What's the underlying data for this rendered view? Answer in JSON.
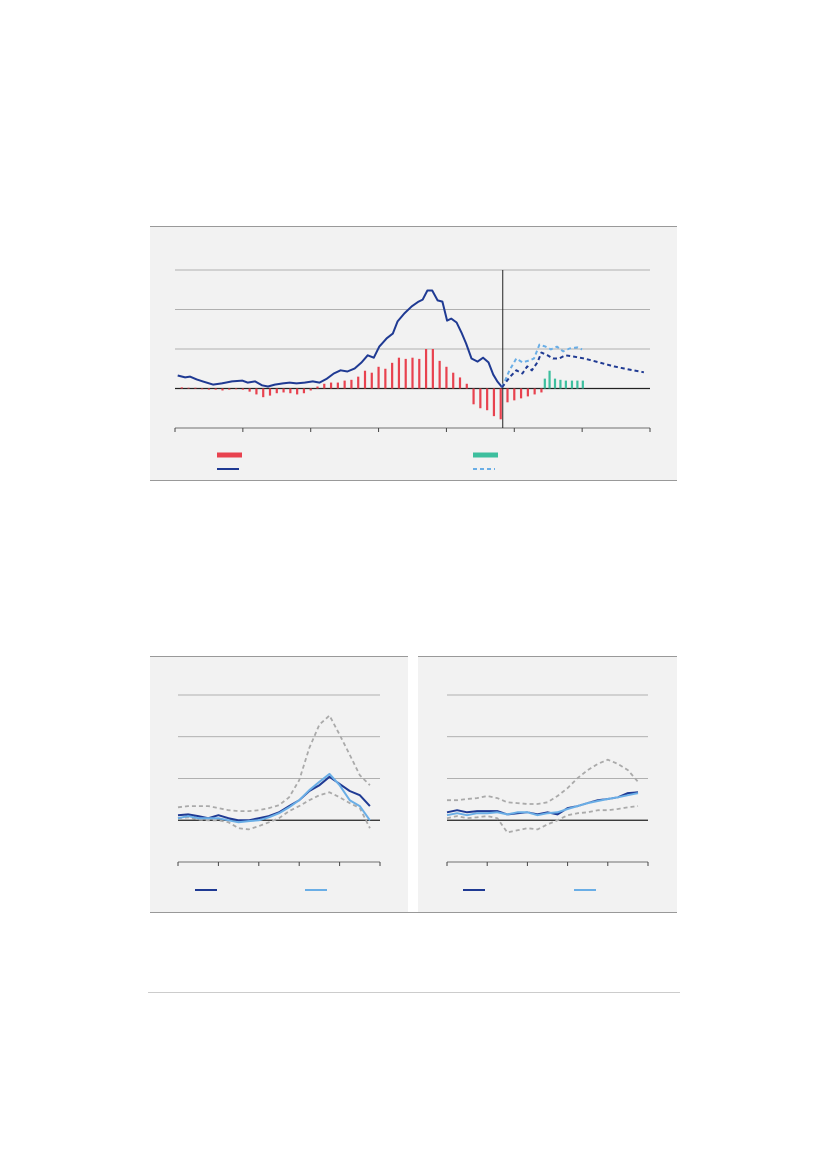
{
  "chart_data": [
    {
      "type": "combo",
      "xlim": [
        0,
        7
      ],
      "xticks": [
        0,
        1,
        2,
        3,
        4,
        5,
        6,
        7
      ],
      "ylim": [
        -1,
        3
      ],
      "yticks": [
        -1,
        0,
        1,
        2,
        3
      ],
      "grid": true,
      "divider_x": 4.83,
      "series": [
        {
          "type": "bar",
          "color": "#e8424f",
          "x": [
            0.1,
            0.2,
            0.3,
            0.4,
            0.5,
            0.6,
            0.7,
            0.8,
            0.9,
            1.0,
            1.1,
            1.2,
            1.3,
            1.4,
            1.5,
            1.6,
            1.7,
            1.8,
            1.9,
            2.0,
            2.1,
            2.2,
            2.3,
            2.4,
            2.5,
            2.6,
            2.7,
            2.8,
            2.9,
            3.0,
            3.1,
            3.2,
            3.3,
            3.4,
            3.5,
            3.6,
            3.7,
            3.8,
            3.9,
            4.0,
            4.1,
            4.2,
            4.3,
            4.4,
            4.5,
            4.6,
            4.7,
            4.8,
            4.9,
            5.0,
            5.1,
            5.2,
            5.3,
            5.4
          ],
          "values": [
            0.03,
            0.02,
            0.02,
            -0.02,
            -0.03,
            -0.03,
            -0.05,
            -0.03,
            -0.02,
            -0.03,
            -0.08,
            -0.15,
            -0.22,
            -0.18,
            -0.12,
            -0.1,
            -0.12,
            -0.15,
            -0.12,
            -0.05,
            0.05,
            0.12,
            0.15,
            0.15,
            0.2,
            0.22,
            0.3,
            0.45,
            0.4,
            0.55,
            0.5,
            0.65,
            0.78,
            0.75,
            0.78,
            0.75,
            1.0,
            1.0,
            0.7,
            0.55,
            0.4,
            0.28,
            0.12,
            -0.4,
            -0.5,
            -0.55,
            -0.7,
            -0.78,
            -0.35,
            -0.3,
            -0.25,
            -0.2,
            -0.15,
            -0.1
          ]
        },
        {
          "type": "line",
          "color": "#1f3a93",
          "x": [
            0.04,
            0.15,
            0.22,
            0.32,
            0.41,
            0.56,
            0.69,
            0.84,
            0.99,
            1.07,
            1.18,
            1.28,
            1.37,
            1.47,
            1.59,
            1.69,
            1.79,
            1.91,
            2.03,
            2.13,
            2.24,
            2.34,
            2.44,
            2.54,
            2.65,
            2.75,
            2.84,
            2.93,
            3.01,
            3.12,
            3.21,
            3.28,
            3.38,
            3.49,
            3.59,
            3.65,
            3.72,
            3.79,
            3.87,
            3.94,
            4.01,
            4.07,
            4.15,
            4.22,
            4.29,
            4.37,
            4.46,
            4.54,
            4.62,
            4.69,
            4.75,
            4.82
          ],
          "values": [
            0.33,
            0.28,
            0.3,
            0.23,
            0.18,
            0.1,
            0.13,
            0.18,
            0.2,
            0.15,
            0.18,
            0.08,
            0.05,
            0.1,
            0.13,
            0.15,
            0.13,
            0.15,
            0.18,
            0.15,
            0.25,
            0.38,
            0.46,
            0.43,
            0.51,
            0.66,
            0.84,
            0.78,
            1.06,
            1.27,
            1.39,
            1.7,
            1.9,
            2.08,
            2.2,
            2.25,
            2.48,
            2.48,
            2.23,
            2.2,
            1.72,
            1.77,
            1.67,
            1.42,
            1.14,
            0.76,
            0.68,
            0.78,
            0.66,
            0.35,
            0.18,
            0.03
          ]
        },
        {
          "type": "bar",
          "color": "#3dbf9e",
          "x": [
            5.45,
            5.52,
            5.6,
            5.68,
            5.76,
            5.85,
            5.93,
            6.01
          ],
          "values": [
            0.25,
            0.45,
            0.25,
            0.22,
            0.2,
            0.2,
            0.2,
            0.2
          ]
        },
        {
          "type": "line",
          "color": "#6aaee6",
          "dash": true,
          "x": [
            4.82,
            4.93,
            5.03,
            5.12,
            5.22,
            5.29,
            5.37,
            5.46,
            5.54,
            5.63,
            5.72,
            5.81,
            5.93,
            6.0
          ],
          "values": [
            0.03,
            0.46,
            0.76,
            0.66,
            0.71,
            0.76,
            1.11,
            1.06,
            0.99,
            1.06,
            0.94,
            1.01,
            1.04,
            0.99
          ]
        },
        {
          "type": "line",
          "color": "#1f3a93",
          "dash": true,
          "legend": false,
          "x": [
            4.82,
            4.93,
            5.03,
            5.12,
            5.19,
            5.26,
            5.34,
            5.4,
            5.49,
            5.57,
            5.66,
            5.75,
            5.87,
            6.03,
            6.25,
            6.47,
            6.69,
            6.91
          ],
          "values": [
            0.03,
            0.28,
            0.46,
            0.38,
            0.56,
            0.46,
            0.66,
            0.91,
            0.84,
            0.76,
            0.76,
            0.84,
            0.81,
            0.76,
            0.66,
            0.56,
            0.48,
            0.41
          ]
        }
      ]
    },
    {
      "type": "line",
      "xlim": [
        0,
        5
      ],
      "xticks": [
        0,
        1,
        2,
        3,
        4,
        5
      ],
      "ylim": [
        -1,
        3
      ],
      "yticks": [
        -1,
        0,
        1,
        2,
        3
      ],
      "grid": true,
      "x": [
        0,
        0.25,
        0.5,
        0.75,
        1,
        1.25,
        1.5,
        1.75,
        2,
        2.25,
        2.5,
        2.75,
        3,
        3.25,
        3.5,
        3.75,
        4,
        4.25,
        4.5,
        4.75
      ],
      "series": [
        {
          "color": "#aaaaaa",
          "dash": true,
          "legend": false,
          "values": [
            0.31,
            0.34,
            0.34,
            0.34,
            0.29,
            0.24,
            0.22,
            0.22,
            0.24,
            0.29,
            0.36,
            0.55,
            0.96,
            1.73,
            2.29,
            2.51,
            2.05,
            1.57,
            1.08,
            0.84
          ]
        },
        {
          "color": "#aaaaaa",
          "dash": true,
          "legend": false,
          "values": [
            0.05,
            0.07,
            0.02,
            0,
            0,
            -0.05,
            -0.19,
            -0.22,
            -0.14,
            -0.05,
            0.05,
            0.22,
            0.34,
            0.48,
            0.6,
            0.67,
            0.55,
            0.41,
            0.29,
            -0.19
          ]
        },
        {
          "color": "#1f3a93",
          "values": [
            0.12,
            0.14,
            0.1,
            0.05,
            0.12,
            0.05,
            0,
            0,
            0.05,
            0.1,
            0.19,
            0.34,
            0.48,
            0.7,
            0.84,
            1.04,
            0.87,
            0.7,
            0.6,
            0.34
          ]
        },
        {
          "color": "#6aaee6",
          "values": [
            0.05,
            0.1,
            0.05,
            0.05,
            0.05,
            0,
            -0.05,
            -0.02,
            0,
            0.07,
            0.17,
            0.31,
            0.48,
            0.72,
            0.92,
            1.11,
            0.84,
            0.48,
            0.34,
            0
          ]
        }
      ]
    },
    {
      "type": "line",
      "xlim": [
        0,
        5
      ],
      "xticks": [
        0,
        1,
        2,
        3,
        4,
        5
      ],
      "ylim": [
        -1,
        3
      ],
      "yticks": [
        -1,
        0,
        1,
        2,
        3
      ],
      "grid": true,
      "x": [
        0,
        0.25,
        0.5,
        0.75,
        1,
        1.25,
        1.5,
        1.75,
        2,
        2.25,
        2.5,
        2.75,
        3,
        3.25,
        3.5,
        3.75,
        4,
        4.25,
        4.5,
        4.75
      ],
      "series": [
        {
          "color": "#aaaaaa",
          "dash": true,
          "legend": false,
          "values": [
            0.48,
            0.48,
            0.51,
            0.53,
            0.58,
            0.53,
            0.43,
            0.41,
            0.39,
            0.39,
            0.43,
            0.58,
            0.77,
            1.01,
            1.2,
            1.35,
            1.45,
            1.35,
            1.2,
            0.92
          ]
        },
        {
          "color": "#aaaaaa",
          "dash": true,
          "legend": false,
          "values": [
            0.05,
            0.1,
            0.05,
            0.07,
            0.1,
            0.05,
            -0.29,
            -0.24,
            -0.19,
            -0.22,
            -0.1,
            0,
            0.12,
            0.17,
            0.19,
            0.24,
            0.24,
            0.27,
            0.31,
            0.34
          ]
        },
        {
          "color": "#1f3a93",
          "values": [
            0.19,
            0.24,
            0.19,
            0.22,
            0.22,
            0.22,
            0.14,
            0.17,
            0.19,
            0.14,
            0.19,
            0.14,
            0.29,
            0.34,
            0.41,
            0.48,
            0.51,
            0.55,
            0.65,
            0.67
          ]
        },
        {
          "color": "#6aaee6",
          "values": [
            0.12,
            0.17,
            0.12,
            0.17,
            0.17,
            0.19,
            0.14,
            0.19,
            0.19,
            0.12,
            0.17,
            0.19,
            0.27,
            0.34,
            0.41,
            0.46,
            0.51,
            0.55,
            0.6,
            0.65
          ]
        }
      ]
    }
  ]
}
